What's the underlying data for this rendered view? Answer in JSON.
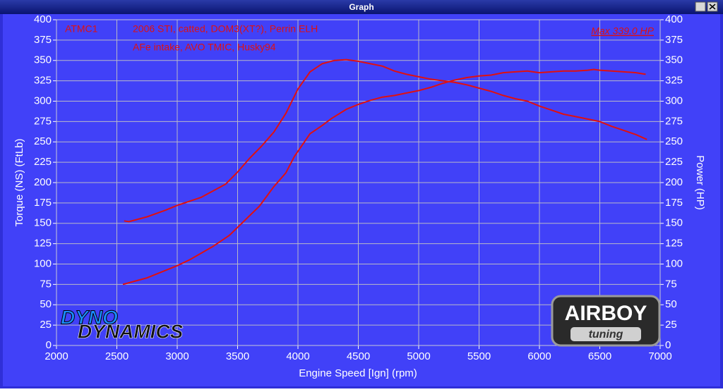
{
  "window_title": "Graph",
  "chart_data": {
    "type": "line",
    "annotations": [
      "ATMC1",
      "2006 STI, catted, DOM3(XT?), Perrin ELH",
      "AFe intake, AVO TMIC, Husky94",
      "Max 339.0 HP"
    ],
    "xlabel": "Engine Speed [Ign] (rpm)",
    "ylabel": "Torque (NS) (FtLb)",
    "y2label": "Power (HP)",
    "xlim": [
      2000,
      7000
    ],
    "xticks": [
      2000,
      2500,
      3000,
      3500,
      4000,
      4500,
      5000,
      5500,
      6000,
      6500,
      7000
    ],
    "ylim": [
      0,
      400
    ],
    "yticks": [
      0,
      25,
      50,
      75,
      100,
      125,
      150,
      175,
      200,
      225,
      250,
      275,
      300,
      325,
      350,
      375,
      400
    ],
    "y2lim": [
      0,
      400
    ],
    "y2ticks": [
      0,
      25,
      50,
      75,
      100,
      125,
      150,
      175,
      200,
      225,
      250,
      275,
      300,
      325,
      350,
      375,
      400
    ],
    "grid": true,
    "series": [
      {
        "color": "#e01010",
        "axis": "y",
        "x": [
          2560,
          2600,
          2750,
          2900,
          3000,
          3200,
          3400,
          3500,
          3600,
          3700,
          3800,
          3900,
          4000,
          4100,
          4200,
          4300,
          4400,
          4500,
          4600,
          4700,
          4800,
          4900,
          5000,
          5100,
          5200,
          5300,
          5400,
          5500,
          5600,
          5700,
          5800,
          5900,
          6000,
          6100,
          6200,
          6300,
          6400,
          6500,
          6600,
          6700,
          6800,
          6890
        ],
        "values": [
          153,
          152,
          158,
          166,
          172,
          182,
          198,
          213,
          230,
          245,
          262,
          285,
          315,
          336,
          346,
          350,
          351,
          349,
          346,
          343,
          337,
          333,
          330,
          327,
          325,
          323,
          320,
          316,
          312,
          307,
          303,
          300,
          294,
          289,
          284,
          281,
          278,
          275,
          269,
          264,
          259,
          253
        ]
      },
      {
        "color": "#e01010",
        "axis": "y2",
        "x": [
          2550,
          2750,
          3000,
          3100,
          3300,
          3430,
          3500,
          3680,
          3800,
          3900,
          3970,
          4100,
          4200,
          4280,
          4400,
          4500,
          4600,
          4700,
          4800,
          4900,
          5000,
          5100,
          5200,
          5300,
          5400,
          5500,
          5600,
          5700,
          5800,
          5900,
          6000,
          6100,
          6200,
          6300,
          6400,
          6450,
          6500,
          6600,
          6700,
          6800,
          6880
        ],
        "values": [
          75,
          83,
          98,
          105,
          122,
          135,
          145,
          171,
          195,
          212,
          232,
          260,
          270,
          279,
          290,
          296,
          301,
          305,
          307,
          310,
          313,
          317,
          322,
          326,
          329,
          331,
          332,
          335,
          336,
          337,
          335,
          336,
          337,
          337,
          338,
          339,
          338,
          337,
          336,
          335,
          333
        ]
      }
    ]
  },
  "logos": {
    "dyno_top": "DYNO",
    "dyno_bottom": "DYNAMICS",
    "airboy": "AIRBOY",
    "tuning": "tuning"
  }
}
